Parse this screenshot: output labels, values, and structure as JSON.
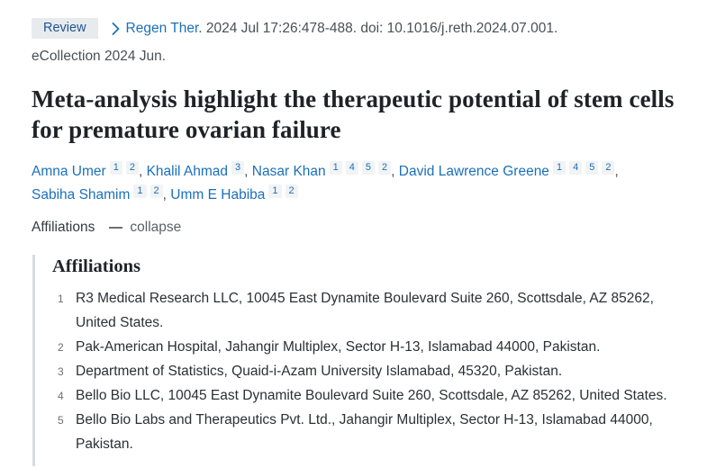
{
  "page": {
    "background_color": "#ffffff",
    "link_color": "#1b70ba"
  },
  "header": {
    "publication_type_badge": "Review",
    "chevron_icon": "chevron-right",
    "journal_link": "Regen Ther",
    "citation_text": ". 2024 Jul 17:26:478-488. doi: 10.1016/j.reth.2024.07.001.",
    "ecollection": "eCollection 2024 Jun."
  },
  "article": {
    "title": "Meta-analysis highlight the therapeutic potential of stem cells for premature ovarian failure"
  },
  "authors_separator": ", ",
  "authors": [
    {
      "name": "Amna Umer",
      "affiliation_refs": [
        "1",
        "2"
      ]
    },
    {
      "name": "Khalil Ahmad",
      "affiliation_refs": [
        "3"
      ]
    },
    {
      "name": "Nasar Khan",
      "affiliation_refs": [
        "1",
        "4",
        "5",
        "2"
      ]
    },
    {
      "name": "David Lawrence Greene",
      "affiliation_refs": [
        "1",
        "4",
        "5",
        "2"
      ]
    },
    {
      "name": "Sabiha Shamim",
      "affiliation_refs": [
        "1",
        "2"
      ]
    },
    {
      "name": "Umm E Habiba",
      "affiliation_refs": [
        "1",
        "2"
      ]
    }
  ],
  "affiliations_toggle": {
    "label": "Affiliations",
    "collapse_icon": "minus",
    "collapse_label": "collapse"
  },
  "affiliations_panel": {
    "heading": "Affiliations",
    "items": [
      {
        "number": "1",
        "text": "R3 Medical Research LLC, 10045 East Dynamite Boulevard Suite 260, Scottsdale, AZ 85262, United States."
      },
      {
        "number": "2",
        "text": "Pak-American Hospital, Jahangir Multiplex, Sector H-13, Islamabad 44000, Pakistan."
      },
      {
        "number": "3",
        "text": "Department of Statistics, Quaid-i-Azam University Islamabad, 45320, Pakistan."
      },
      {
        "number": "4",
        "text": "Bello Bio LLC, 10045 East Dynamite Boulevard Suite 260, Scottsdale, AZ 85262, United States."
      },
      {
        "number": "5",
        "text": "Bello Bio Labs and Therapeutics Pvt. Ltd., Jahangir Multiplex, Sector H-13, Islamabad 44000, Pakistan."
      }
    ]
  }
}
